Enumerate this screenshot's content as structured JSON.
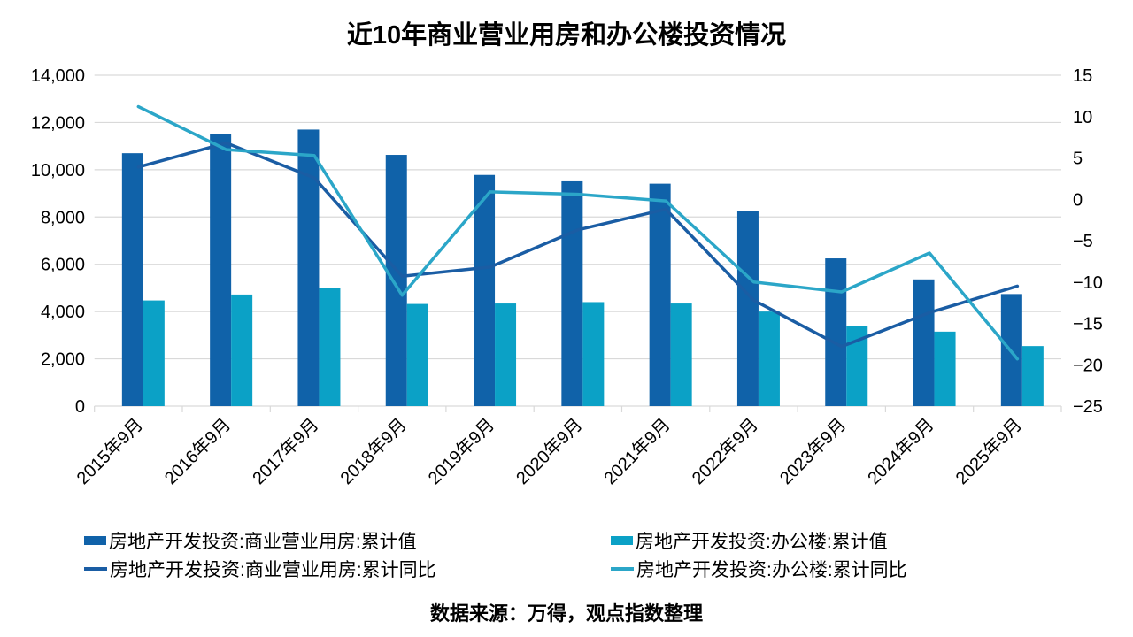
{
  "title": "近10年商业营业用房和办公楼投资情况",
  "source": "数据来源：万得，观点指数整理",
  "colors": {
    "bar_commercial": "#1062A9",
    "bar_office": "#0BA1C6",
    "line_commercial": "#1A5DA4",
    "line_office": "#2BA6C8",
    "gridline": "#D9D9D9",
    "text": "#000000"
  },
  "chart_data": {
    "type": "bar",
    "subtype": "bar-line-combo-dual-axis",
    "title": "近10年商业营业用房和办公楼投资情况",
    "grid": true,
    "legend_position": "bottom",
    "categories": [
      "2015年9月",
      "2016年9月",
      "2017年9月",
      "2018年9月",
      "2019年9月",
      "2020年9月",
      "2021年9月",
      "2022年9月",
      "2023年9月",
      "2024年9月",
      "2025年9月"
    ],
    "series": [
      {
        "name": "房地产开发投资:商业营业用房:累计值",
        "type": "bar",
        "axis": "left",
        "color": "#1062A9",
        "values": [
          10700,
          11520,
          11700,
          10630,
          9780,
          9510,
          9410,
          8260,
          6250,
          5360,
          4740
        ]
      },
      {
        "name": "房地产开发投资:办公楼:累计值",
        "type": "bar",
        "axis": "left",
        "color": "#0BA1C6",
        "values": [
          4470,
          4720,
          4990,
          4320,
          4340,
          4400,
          4340,
          4000,
          3380,
          3150,
          2540
        ]
      },
      {
        "name": "房地产开发投资:商业营业用房:累计同比",
        "type": "line",
        "axis": "right",
        "color": "#1A5DA4",
        "values": [
          3.9,
          6.8,
          2.6,
          -9.3,
          -8.2,
          -3.7,
          -1.2,
          -12.2,
          -17.8,
          -13.7,
          -10.5
        ]
      },
      {
        "name": "房地产开发投资:办公楼:累计同比",
        "type": "line",
        "axis": "right",
        "color": "#2BA6C8",
        "values": [
          11.2,
          6.0,
          5.3,
          -11.6,
          0.9,
          0.6,
          -0.2,
          -10.0,
          -11.2,
          -6.5,
          -19.3
        ]
      }
    ],
    "left_axis": {
      "min": 0,
      "max": 14000,
      "step": 2000,
      "tick_labels": [
        "14,000",
        "12,000",
        "10,000",
        "8,000",
        "6,000",
        "4,000",
        "2,000",
        "0"
      ]
    },
    "right_axis": {
      "min": -25,
      "max": 15,
      "step": 5,
      "tick_labels": [
        "15",
        "10",
        "5",
        "0",
        "−5",
        "−10",
        "−15",
        "−20",
        "−25"
      ]
    }
  }
}
